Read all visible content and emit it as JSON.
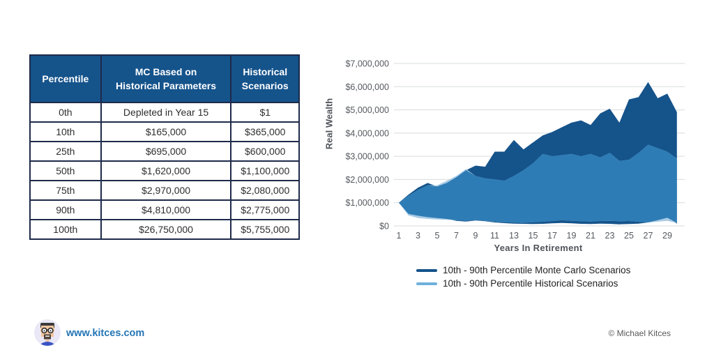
{
  "table": {
    "headers": [
      "Percentile",
      "MC Based on\nHistorical Parameters",
      "Historical\nScenarios"
    ],
    "rows": [
      [
        "0th",
        "Depleted in Year 15",
        "$1"
      ],
      [
        "10th",
        "$165,000",
        "$365,000"
      ],
      [
        "25th",
        "$695,000",
        "$600,000"
      ],
      [
        "50th",
        "$1,620,000",
        "$1,100,000"
      ],
      [
        "75th",
        "$2,970,000",
        "$2,080,000"
      ],
      [
        "90th",
        "$4,810,000",
        "$2,775,000"
      ],
      [
        "100th",
        "$26,750,000",
        "$5,755,000"
      ]
    ]
  },
  "chart_data": {
    "type": "area",
    "title": "",
    "xlabel": "Years In Retirement",
    "ylabel": "Real Wealth",
    "x": [
      1,
      2,
      3,
      4,
      5,
      6,
      7,
      8,
      9,
      10,
      11,
      12,
      13,
      14,
      15,
      16,
      17,
      18,
      19,
      20,
      21,
      22,
      23,
      24,
      25,
      26,
      27,
      28,
      29,
      30
    ],
    "x_tick_labels": [
      1,
      3,
      5,
      7,
      9,
      11,
      13,
      15,
      17,
      19,
      21,
      23,
      25,
      27,
      29
    ],
    "y_ticks": [
      "$0",
      "$1,000,000",
      "$2,000,000",
      "$3,000,000",
      "$4,000,000",
      "$5,000,000",
      "$6,000,000",
      "$7,000,000"
    ],
    "ylim": [
      0,
      7000000
    ],
    "grid": "horizontal",
    "legend_position": "bottom",
    "series": [
      {
        "name": "10th - 90th Percentile Monte Carlo Scenarios",
        "band": "10th-90th percentile",
        "color": "#15538b",
        "fill": "#15538b",
        "upper": [
          1000000,
          1350000,
          1650000,
          1850000,
          1700000,
          1850000,
          2100000,
          2400000,
          2600000,
          2550000,
          3200000,
          3200000,
          3700000,
          3300000,
          3600000,
          3900000,
          4050000,
          4250000,
          4450000,
          4550000,
          4350000,
          4850000,
          5050000,
          4450000,
          5450000,
          5550000,
          6200000,
          5500000,
          5700000,
          4900000
        ],
        "lower": [
          1000000,
          520000,
          440000,
          380000,
          340000,
          300000,
          220000,
          190000,
          230000,
          200000,
          150000,
          120000,
          100000,
          90000,
          80000,
          90000,
          110000,
          130000,
          110000,
          90000,
          80000,
          100000,
          90000,
          70000,
          80000,
          100000,
          150000,
          250000,
          350000,
          100000
        ]
      },
      {
        "name": "10th - 90th Percentile Historical Scenarios",
        "band": "10th-90th percentile",
        "color": "#6fb0de",
        "fill": "#a9cbe5",
        "overlap_color": "#2e7cb5",
        "upper": [
          1000000,
          1300000,
          1550000,
          1750000,
          1750000,
          1950000,
          2150000,
          2450000,
          2150000,
          2050000,
          2000000,
          1950000,
          2150000,
          2400000,
          2700000,
          3100000,
          3000000,
          3050000,
          3100000,
          3000000,
          3100000,
          2950000,
          3150000,
          2800000,
          2850000,
          3150000,
          3500000,
          3350000,
          3200000,
          2900000
        ],
        "lower": [
          1000000,
          450000,
          340000,
          300000,
          280000,
          260000,
          240000,
          220000,
          250000,
          220000,
          180000,
          160000,
          140000,
          130000,
          160000,
          180000,
          210000,
          250000,
          220000,
          200000,
          190000,
          210000,
          220000,
          200000,
          210000,
          180000,
          150000,
          180000,
          220000,
          130000
        ]
      }
    ]
  },
  "footer": {
    "site": "www.kitces.com",
    "copyright": "© Michael Kitces"
  },
  "colors": {
    "table_header_bg": "#15538b",
    "table_border": "#1e2a4a",
    "mc_band": "#15538b",
    "historical_band_solo": "#a9cbe5",
    "band_overlap": "#2e7cb5",
    "legend_historical_line": "#6fb0de",
    "gridline": "#d8dbdd",
    "axis_text": "#55595f",
    "link_blue": "#2375b6"
  }
}
